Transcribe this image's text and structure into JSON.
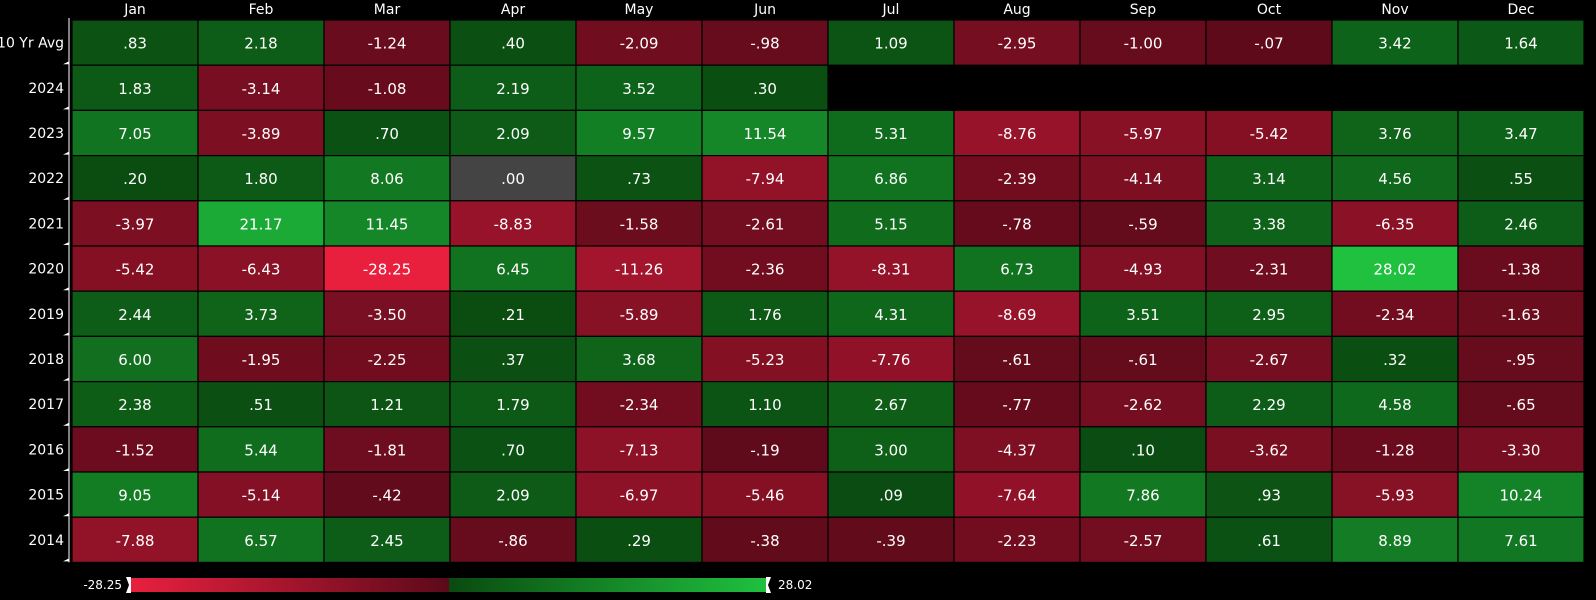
{
  "chart_data": {
    "type": "heatmap",
    "columns": [
      "Jan",
      "Feb",
      "Mar",
      "Apr",
      "May",
      "Jun",
      "Jul",
      "Aug",
      "Sep",
      "Oct",
      "Nov",
      "Dec"
    ],
    "rows": [
      {
        "label": "10 Yr Avg",
        "values": [
          ".83",
          "2.18",
          "-1.24",
          ".40",
          "-2.09",
          "-.98",
          "1.09",
          "-2.95",
          "-1.00",
          "-.07",
          "3.42",
          "1.64"
        ]
      },
      {
        "label": "2024",
        "values": [
          "1.83",
          "-3.14",
          "-1.08",
          "2.19",
          "3.52",
          ".30",
          null,
          null,
          null,
          null,
          null,
          null
        ]
      },
      {
        "label": "2023",
        "values": [
          "7.05",
          "-3.89",
          ".70",
          "2.09",
          "9.57",
          "11.54",
          "5.31",
          "-8.76",
          "-5.97",
          "-5.42",
          "3.76",
          "3.47"
        ]
      },
      {
        "label": "2022",
        "values": [
          ".20",
          "1.80",
          "8.06",
          ".00",
          ".73",
          "-7.94",
          "6.86",
          "-2.39",
          "-4.14",
          "3.14",
          "4.56",
          ".55"
        ]
      },
      {
        "label": "2021",
        "values": [
          "-3.97",
          "21.17",
          "11.45",
          "-8.83",
          "-1.58",
          "-2.61",
          "5.15",
          "-.78",
          "-.59",
          "3.38",
          "-6.35",
          "2.46"
        ]
      },
      {
        "label": "2020",
        "values": [
          "-5.42",
          "-6.43",
          "-28.25",
          "6.45",
          "-11.26",
          "-2.36",
          "-8.31",
          "6.73",
          "-4.93",
          "-2.31",
          "28.02",
          "-1.38"
        ]
      },
      {
        "label": "2019",
        "values": [
          "2.44",
          "3.73",
          "-3.50",
          ".21",
          "-5.89",
          "1.76",
          "4.31",
          "-8.69",
          "3.51",
          "2.95",
          "-2.34",
          "-1.63"
        ]
      },
      {
        "label": "2018",
        "values": [
          "6.00",
          "-1.95",
          "-2.25",
          ".37",
          "3.68",
          "-5.23",
          "-7.76",
          "-.61",
          "-.61",
          "-2.67",
          ".32",
          "-.95"
        ]
      },
      {
        "label": "2017",
        "values": [
          "2.38",
          ".51",
          "1.21",
          "1.79",
          "-2.34",
          "1.10",
          "2.67",
          "-.77",
          "-2.62",
          "2.29",
          "4.58",
          "-.65"
        ]
      },
      {
        "label": "2016",
        "values": [
          "-1.52",
          "5.44",
          "-1.81",
          ".70",
          "-7.13",
          "-.19",
          "3.00",
          "-4.37",
          ".10",
          "-3.62",
          "-1.28",
          "-3.30"
        ]
      },
      {
        "label": "2015",
        "values": [
          "9.05",
          "-5.14",
          "-.42",
          "2.09",
          "-6.97",
          "-5.46",
          ".09",
          "-7.64",
          "7.86",
          ".93",
          "-5.93",
          "10.24"
        ]
      },
      {
        "label": "2014",
        "values": [
          "-7.88",
          "6.57",
          "2.45",
          "-.86",
          ".29",
          "-.38",
          "-.39",
          "-2.23",
          "-2.57",
          ".61",
          "8.89",
          "7.61"
        ]
      }
    ],
    "scale": {
      "min": -28.25,
      "max": 28.02,
      "min_label": "-28.25",
      "max_label": "28.02"
    },
    "colors": {
      "negative_strong": "#e8203e",
      "negative_weak": "#5c0a1a",
      "zero": "#444444",
      "positive_weak": "#0a4a10",
      "positive_strong": "#1fc13f",
      "background": "#000000",
      "grid": "#000000",
      "text": "#ffffff"
    }
  }
}
